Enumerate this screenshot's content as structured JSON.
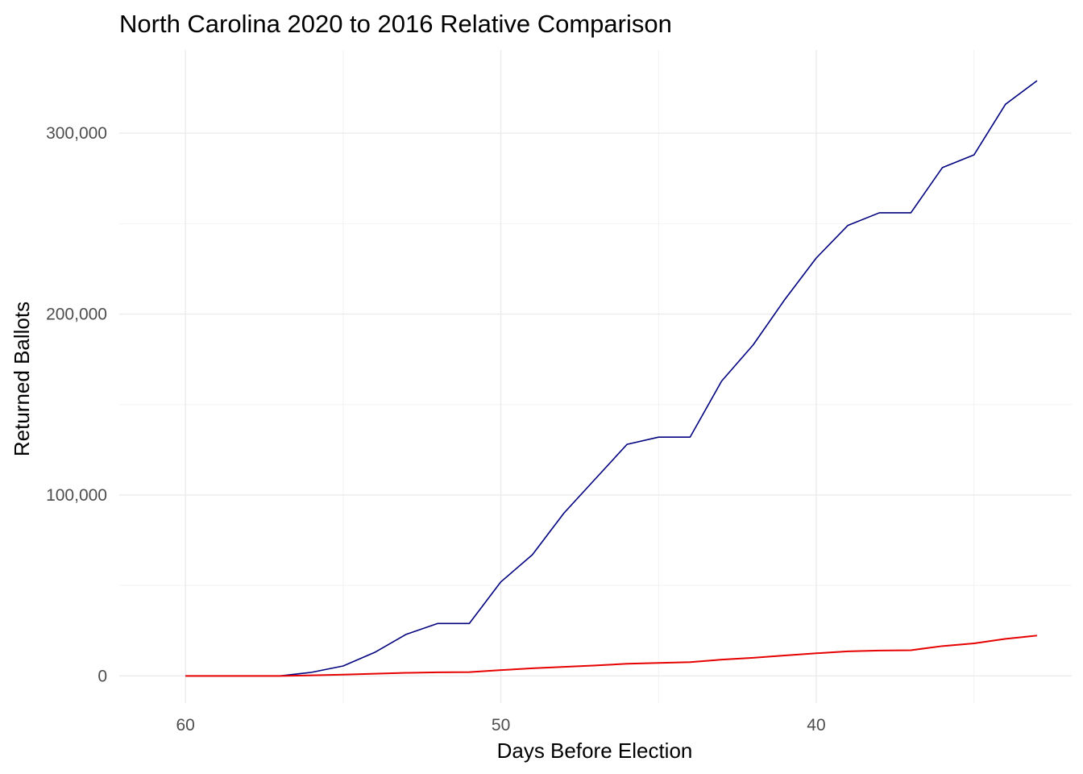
{
  "chart_data": {
    "type": "line",
    "title": "North Carolina 2020 to 2016 Relative Comparison",
    "xlabel": "Days Before Election",
    "ylabel": "Returned Ballots",
    "xlim": [
      62.1,
      31.9
    ],
    "ylim": [
      -15000,
      346000
    ],
    "x_reversed": true,
    "grid": true,
    "legend": "none",
    "x_ticks": [
      {
        "value": 60,
        "label": "60"
      },
      {
        "value": 50,
        "label": "50"
      },
      {
        "value": 40,
        "label": "40"
      }
    ],
    "x_minor_ticks": [
      55,
      45,
      35
    ],
    "y_ticks": [
      {
        "value": 0,
        "label": "0"
      },
      {
        "value": 100000,
        "label": "100,000"
      },
      {
        "value": 200000,
        "label": "200,000"
      },
      {
        "value": 300000,
        "label": "300,000"
      }
    ],
    "y_minor_ticks": [
      50000,
      150000,
      250000
    ],
    "x": [
      60,
      59,
      58,
      57,
      56,
      55,
      54,
      53,
      52,
      51,
      50,
      49,
      48,
      47,
      46,
      45,
      44,
      43,
      42,
      41,
      40,
      39,
      38,
      37,
      36,
      35,
      34,
      33
    ],
    "series": [
      {
        "color": "#00007f",
        "values": [
          0,
          0,
          0,
          0,
          2000,
          5500,
          13000,
          23000,
          29000,
          29000,
          52000,
          67000,
          90000,
          109000,
          128000,
          132000,
          132000,
          163000,
          183000,
          208000,
          231000,
          249000,
          256000,
          256000,
          281000,
          288000,
          316000,
          329000
        ]
      },
      {
        "color": "#e60000",
        "values": [
          0,
          0,
          0,
          0,
          300,
          700,
          1200,
          1700,
          2000,
          2100,
          3200,
          4200,
          5000,
          5800,
          6700,
          7200,
          7600,
          9000,
          10000,
          11300,
          12500,
          13600,
          14000,
          14200,
          16500,
          18000,
          20500,
          22300
        ]
      }
    ]
  }
}
